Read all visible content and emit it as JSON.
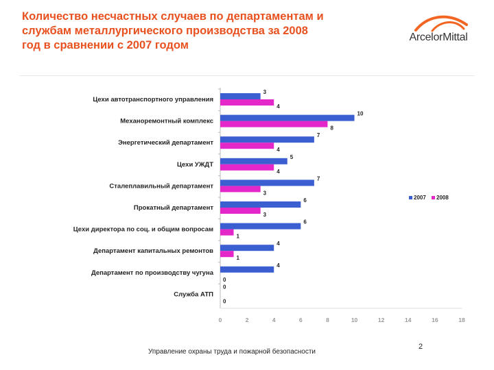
{
  "header": {
    "title": "Количество несчастных случаев по департаментам и службам металлургического производства за 2008 год в сравнении с 2007 годом",
    "logo_text": "ArcelorMittal"
  },
  "chart_data": {
    "type": "bar",
    "orientation": "horizontal",
    "categories": [
      "Цехи автотранспортного управления",
      "Механоремонтный комплекс",
      "Энергетический департамент",
      "Цехи УЖДТ",
      "Сталеплавильный департамент",
      "Прокатный департамент",
      "Цехи директора по соц. и общим вопросам",
      "Департамент капитальных ремонтов",
      "Департамент по производству чугуна",
      "Служба АТП"
    ],
    "series": [
      {
        "name": "2007",
        "color": "#3b5fd0",
        "values": [
          3,
          10,
          7,
          5,
          7,
          6,
          6,
          4,
          4,
          0
        ]
      },
      {
        "name": "2008",
        "color": "#e327c8",
        "values": [
          4,
          8,
          4,
          4,
          3,
          3,
          1,
          1,
          0,
          0
        ]
      }
    ],
    "xlim": [
      0,
      18
    ],
    "xticks": [
      "0",
      "2",
      "4",
      "6",
      "8",
      "10",
      "12",
      "14",
      "16",
      "18"
    ],
    "legend_position": "right",
    "title": "",
    "xlabel": "",
    "ylabel": ""
  },
  "footer": {
    "text": "Управление охраны труда и пожарной безопасности",
    "page_number": "2"
  }
}
